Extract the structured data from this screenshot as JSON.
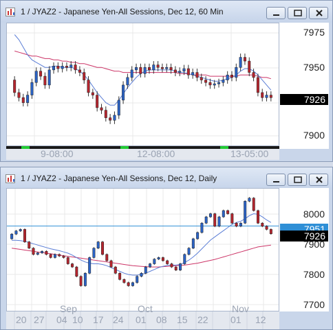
{
  "top_window": {
    "title": "1 / JYAZ2 - Japanese Yen-All Sessions, Dec 12, 60 Min",
    "y_ticks": [
      "7975",
      "7950",
      "7925",
      "7900"
    ],
    "last_price": "7926",
    "last_price_color": "#000000",
    "x_ticks": [
      "9-08:00",
      "12-08:00",
      "13-05:00"
    ],
    "chart_data": {
      "type": "candlestick",
      "ylim": [
        7888,
        7985
      ],
      "close": [
        7930,
        7926,
        7922,
        7928,
        7938,
        7947,
        7943,
        7936,
        7948,
        7951,
        7949,
        7951,
        7950,
        7952,
        7948,
        7946,
        7940,
        7930,
        7928,
        7918,
        7916,
        7910,
        7908,
        7912,
        7924,
        7936,
        7942,
        7948,
        7950,
        7945,
        7950,
        7948,
        7952,
        7950,
        7949,
        7950,
        7948,
        7946,
        7947,
        7949,
        7944,
        7946,
        7942,
        7940,
        7938,
        7936,
        7937,
        7938,
        7940,
        7944,
        7942,
        7950,
        7958,
        7955,
        7946,
        7942,
        7930,
        7926,
        7928,
        7926
      ],
      "open": [
        7940,
        7930,
        7926,
        7922,
        7928,
        7938,
        7947,
        7943,
        7936,
        7948,
        7951,
        7949,
        7951,
        7950,
        7952,
        7948,
        7946,
        7940,
        7930,
        7928,
        7918,
        7916,
        7910,
        7908,
        7912,
        7924,
        7936,
        7942,
        7948,
        7950,
        7945,
        7950,
        7948,
        7952,
        7950,
        7949,
        7950,
        7948,
        7946,
        7947,
        7949,
        7944,
        7946,
        7942,
        7940,
        7938,
        7936,
        7937,
        7938,
        7940,
        7944,
        7942,
        7950,
        7958,
        7955,
        7946,
        7942,
        7930,
        7926,
        7928
      ],
      "series": [
        {
          "name": "",
          "color": "#cc3366",
          "values": [
            7963,
            7962,
            7961,
            7960,
            7959,
            7959,
            7958,
            7957,
            7957,
            7956,
            7956,
            7955,
            7955,
            7954,
            7954,
            7953,
            7953,
            7952,
            7951,
            7950,
            7950,
            7949,
            7948,
            7947,
            7947,
            7946,
            7946,
            7946,
            7946,
            7946,
            7946,
            7946,
            7946,
            7946,
            7946,
            7946,
            7946,
            7946,
            7945,
            7945,
            7945,
            7944,
            7944,
            7944,
            7944,
            7943,
            7943,
            7943,
            7943,
            7943,
            7943,
            7943,
            7944,
            7944,
            7944,
            7944,
            7943,
            7942,
            7942,
            7941
          ]
        },
        {
          "name": "",
          "color": "#5b7ed6",
          "values": [
            7976,
            7972,
            7966,
            7960,
            7956,
            7954,
            7952,
            7950,
            7950,
            7951,
            7951,
            7950,
            7950,
            7950,
            7949,
            7947,
            7944,
            7940,
            7935,
            7930,
            7926,
            7922,
            7920,
            7920,
            7924,
            7929,
            7934,
            7938,
            7942,
            7945,
            7947,
            7948,
            7948,
            7948,
            7948,
            7948,
            7948,
            7947,
            7946,
            7946,
            7945,
            7944,
            7943,
            7942,
            7941,
            7940,
            7939,
            7939,
            7940,
            7941,
            7942,
            7944,
            7947,
            7949,
            7949,
            7947,
            7944,
            7940,
            7936,
            7932
          ]
        }
      ]
    },
    "session_bar_colors": [
      "#1a1a1a",
      "#22cc33"
    ]
  },
  "bottom_window": {
    "title": "1 / JYAZ2 - Japanese Yen-All Sessions, Dec 12, Daily",
    "y_ticks": [
      "8000",
      "7900",
      "7800",
      "7700"
    ],
    "line_price": "7951",
    "line_price_color": "#2f8fd6",
    "last_price": "7926",
    "last_price_color": "#000000",
    "x_ticks": [
      "20",
      "27",
      "04",
      "10",
      "17",
      "24",
      "01",
      "08",
      "15",
      "22",
      "01",
      "12"
    ],
    "month_labels": [
      "Sep",
      "Oct",
      "Nov"
    ],
    "chart_data": {
      "type": "candlestick",
      "ylim": [
        7680,
        8070
      ],
      "hline": 7951,
      "close": [
        7925,
        7935,
        7940,
        7900,
        7880,
        7860,
        7865,
        7870,
        7860,
        7850,
        7860,
        7855,
        7850,
        7830,
        7820,
        7790,
        7760,
        7800,
        7850,
        7880,
        7900,
        7860,
        7840,
        7820,
        7800,
        7780,
        7770,
        7760,
        7770,
        7790,
        7800,
        7820,
        7830,
        7845,
        7850,
        7840,
        7830,
        7820,
        7810,
        7830,
        7860,
        7880,
        7910,
        7930,
        7960,
        7980,
        7990,
        7950,
        7980,
        8000,
        7990,
        7960,
        7950,
        7960,
        8030,
        8040,
        8000,
        7960,
        7950,
        7940,
        7926
      ],
      "open": [
        7910,
        7925,
        7935,
        7940,
        7900,
        7880,
        7860,
        7865,
        7870,
        7860,
        7850,
        7860,
        7855,
        7850,
        7830,
        7820,
        7790,
        7760,
        7800,
        7850,
        7880,
        7900,
        7860,
        7840,
        7820,
        7800,
        7780,
        7770,
        7760,
        7770,
        7790,
        7800,
        7820,
        7830,
        7845,
        7850,
        7840,
        7830,
        7820,
        7810,
        7830,
        7860,
        7880,
        7910,
        7930,
        7960,
        7980,
        7990,
        7950,
        7980,
        8000,
        7990,
        7960,
        7950,
        7960,
        8030,
        8040,
        8000,
        7960,
        7950,
        7940
      ],
      "series": [
        {
          "name": "",
          "color": "#cc3366",
          "values": [
            7880,
            7878,
            7876,
            7874,
            7872,
            7870,
            7868,
            7866,
            7864,
            7862,
            7860,
            7858,
            7856,
            7854,
            7852,
            7850,
            7848,
            7846,
            7844,
            7842,
            7840,
            7838,
            7836,
            7834,
            7832,
            7830,
            7828,
            7826,
            7824,
            7823,
            7822,
            7821,
            7820,
            7820,
            7820,
            7821,
            7822,
            7823,
            7824,
            7825,
            7826,
            7828,
            7830,
            7832,
            7835,
            7838,
            7841,
            7844,
            7848,
            7852,
            7856,
            7860,
            7864,
            7868,
            7872,
            7876,
            7880,
            7884,
            7886,
            7888,
            7890
          ]
        },
        {
          "name": "",
          "color": "#5b7ed6",
          "values": [
            7905,
            7905,
            7904,
            7902,
            7898,
            7894,
            7890,
            7886,
            7882,
            7878,
            7875,
            7872,
            7868,
            7864,
            7858,
            7850,
            7842,
            7836,
            7832,
            7830,
            7830,
            7828,
            7824,
            7818,
            7812,
            7806,
            7800,
            7796,
            7794,
            7794,
            7796,
            7800,
            7806,
            7812,
            7818,
            7822,
            7825,
            7826,
            7826,
            7828,
            7834,
            7842,
            7852,
            7864,
            7878,
            7892,
            7906,
            7916,
            7926,
            7936,
            7946,
            7956,
            7962,
            7966,
            7974,
            7984,
            7990,
            7988,
            7980,
            7970,
            7962
          ]
        }
      ]
    }
  }
}
